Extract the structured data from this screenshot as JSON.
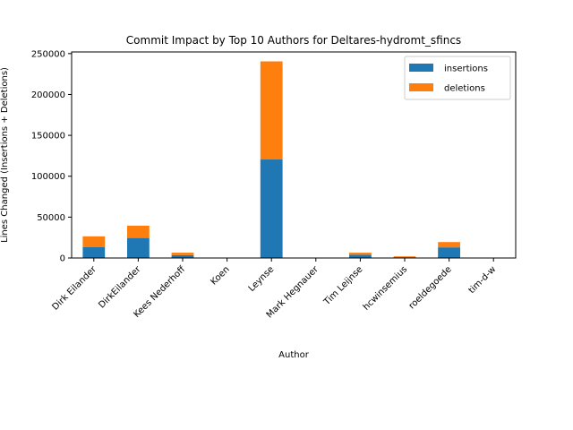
{
  "chart_data": {
    "type": "bar",
    "stacked": true,
    "title": "Commit Impact by Top 10 Authors for Deltares-hydromt_sfincs",
    "xlabel": "Author",
    "ylabel": "Lines Changed (Insertions + Deletions)",
    "categories": [
      "Dirk Eilander",
      "DirkEilander",
      "Kees Nederhoff",
      "Koen",
      "Leynse",
      "Mark Hegnauer",
      "Tim Leijnse",
      "hcwinsemius",
      "roeldegoede",
      "tim-d-w"
    ],
    "series": [
      {
        "name": "insertions",
        "color": "#1f77b4",
        "values": [
          13500,
          24500,
          3500,
          0,
          120500,
          0,
          4000,
          1000,
          13000,
          0
        ]
      },
      {
        "name": "deletions",
        "color": "#ff7f0e",
        "values": [
          13000,
          15000,
          3000,
          0,
          120000,
          0,
          2500,
          1000,
          6500,
          0
        ]
      }
    ],
    "ylim": [
      0,
      252000
    ],
    "yticks": [
      0,
      50000,
      100000,
      150000,
      200000,
      250000
    ],
    "ytick_labels": [
      "0",
      "50000",
      "100000",
      "150000",
      "200000",
      "250000"
    ],
    "legend_position": "upper right",
    "grid": false
  }
}
